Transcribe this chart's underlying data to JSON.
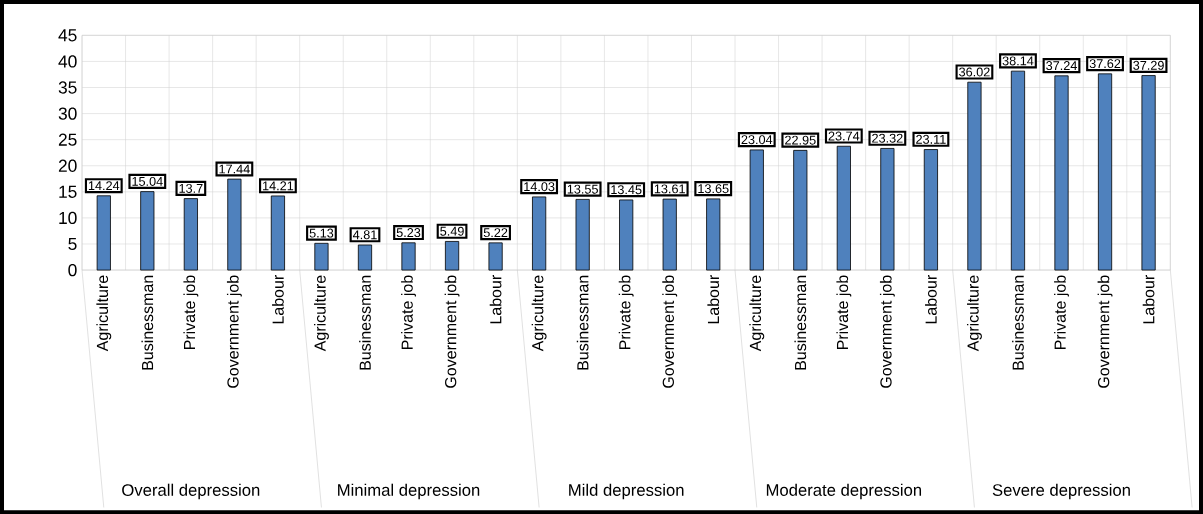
{
  "chart_data": {
    "type": "bar",
    "categories": [
      "Agriculture",
      "Businessman",
      "Private job",
      "Government job",
      "Labour",
      "Agriculture",
      "Businessman",
      "Private job",
      "Government job",
      "Labour",
      "Agriculture",
      "Businessman",
      "Private job",
      "Government job",
      "Labour",
      "Agriculture",
      "Businessman",
      "Private job",
      "Government job",
      "Labour",
      "Agriculture",
      "Businessman",
      "Private job",
      "Government job",
      "Labour"
    ],
    "values": [
      14.24,
      15.04,
      13.7,
      17.44,
      14.21,
      5.13,
      4.81,
      5.23,
      5.49,
      5.22,
      14.03,
      13.55,
      13.45,
      13.61,
      13.65,
      23.04,
      22.95,
      23.74,
      23.32,
      23.11,
      36.02,
      38.14,
      37.24,
      37.62,
      37.29
    ],
    "color": "#4f81bd",
    "ylim": [
      0,
      45
    ],
    "yticks": [
      0,
      5,
      10,
      15,
      20,
      25,
      30,
      35,
      40,
      45
    ],
    "grid": true,
    "data_labels": true,
    "annotations": [
      "Overall depression",
      "Minimal depression",
      "Mild depression",
      "Moderate depression",
      "Severe depression"
    ]
  }
}
